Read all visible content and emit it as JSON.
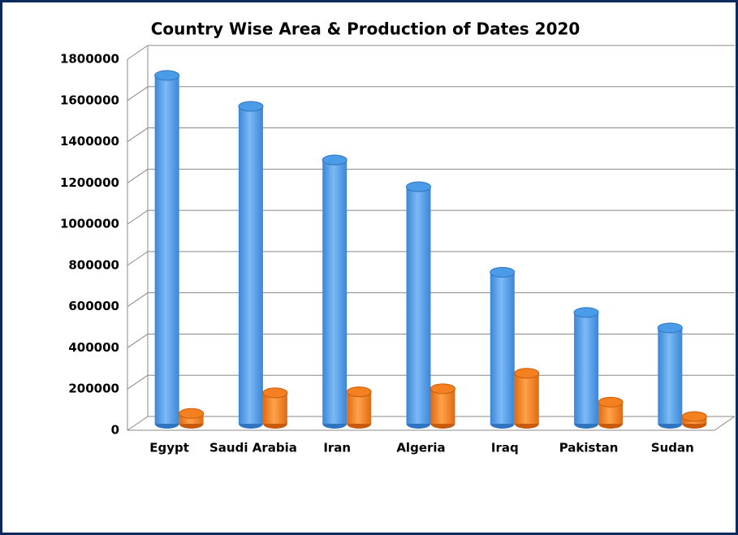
{
  "chart_data": {
    "type": "bar3d",
    "title": "Country Wise Area & Production of Dates 2020",
    "categories": [
      "Egypt",
      "Saudi Arabia",
      "Iran",
      "Algeria",
      "Iraq",
      "Pakistan",
      "Sudan"
    ],
    "series": [
      {
        "color": "#4a9be8",
        "values": [
          1690000,
          1540000,
          1280000,
          1150000,
          735000,
          540000,
          465000
        ]
      },
      {
        "color": "#f5801f",
        "values": [
          50000,
          150000,
          155000,
          170000,
          245000,
          105000,
          35000
        ]
      }
    ],
    "ylim": [
      0,
      1800000
    ],
    "yticks": [
      0,
      200000,
      400000,
      600000,
      800000,
      1000000,
      1200000,
      1400000,
      1600000,
      1800000
    ],
    "grid": true
  }
}
